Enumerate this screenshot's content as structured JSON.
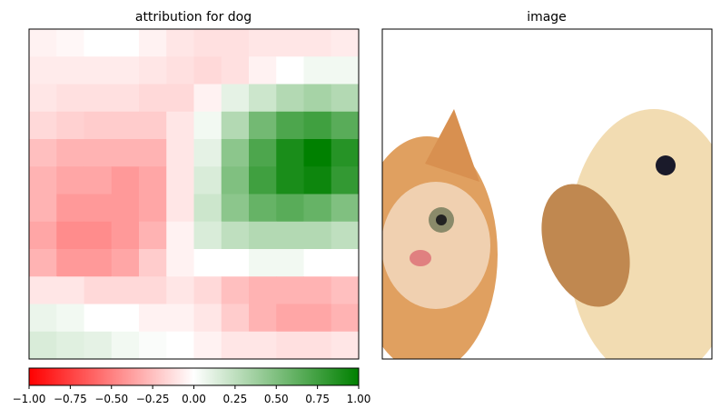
{
  "chart_data": [
    {
      "type": "heatmap",
      "title": "attribution for dog",
      "colormap": [
        "#ff0000",
        "#ffffff",
        "#008000"
      ],
      "values": [
        [
          -0.05,
          -0.03,
          0,
          0,
          -0.05,
          -0.1,
          -0.12,
          -0.12,
          -0.1,
          -0.1,
          -0.1,
          -0.08
        ],
        [
          -0.08,
          -0.08,
          -0.08,
          -0.08,
          -0.1,
          -0.12,
          -0.15,
          -0.12,
          -0.05,
          0,
          0.05,
          0.05
        ],
        [
          -0.1,
          -0.12,
          -0.12,
          -0.12,
          -0.15,
          -0.15,
          -0.05,
          0.1,
          0.2,
          0.3,
          0.35,
          0.3
        ],
        [
          -0.15,
          -0.18,
          -0.2,
          -0.2,
          -0.2,
          -0.1,
          0.05,
          0.3,
          0.55,
          0.7,
          0.75,
          0.65
        ],
        [
          -0.25,
          -0.3,
          -0.3,
          -0.3,
          -0.3,
          -0.1,
          0.1,
          0.45,
          0.7,
          0.9,
          1.0,
          0.85
        ],
        [
          -0.3,
          -0.35,
          -0.35,
          -0.4,
          -0.35,
          -0.1,
          0.15,
          0.5,
          0.75,
          0.9,
          0.95,
          0.8
        ],
        [
          -0.3,
          -0.4,
          -0.4,
          -0.4,
          -0.35,
          -0.1,
          0.2,
          0.45,
          0.6,
          0.65,
          0.6,
          0.5
        ],
        [
          -0.35,
          -0.45,
          -0.45,
          -0.4,
          -0.3,
          -0.05,
          0.15,
          0.25,
          0.3,
          0.3,
          0.3,
          0.25
        ],
        [
          -0.3,
          -0.4,
          -0.4,
          -0.35,
          -0.2,
          -0.05,
          0,
          0,
          0.05,
          0.05,
          0,
          0
        ],
        [
          -0.1,
          -0.1,
          -0.15,
          -0.15,
          -0.15,
          -0.1,
          -0.15,
          -0.25,
          -0.3,
          -0.3,
          -0.3,
          -0.25
        ],
        [
          0.08,
          0.05,
          0,
          0,
          -0.05,
          -0.05,
          -0.1,
          -0.2,
          -0.3,
          -0.35,
          -0.35,
          -0.3
        ],
        [
          0.15,
          0.12,
          0.1,
          0.05,
          0.02,
          0,
          -0.05,
          -0.1,
          -0.1,
          -0.12,
          -0.12,
          -0.1
        ]
      ],
      "colorbar": {
        "xlim": [
          -1,
          1
        ],
        "xticks": [
          {
            "value": -1,
            "label": "−1.00"
          },
          {
            "value": -0.75,
            "label": "−0.75"
          },
          {
            "value": -0.5,
            "label": "−0.50"
          },
          {
            "value": -0.25,
            "label": "−0.25"
          },
          {
            "value": 0,
            "label": "0.00"
          },
          {
            "value": 0.25,
            "label": "0.25"
          },
          {
            "value": 0.5,
            "label": "0.50"
          },
          {
            "value": 0.75,
            "label": "0.75"
          },
          {
            "value": 1,
            "label": "1.00"
          }
        ]
      }
    },
    {
      "type": "image",
      "title": "image"
    }
  ]
}
